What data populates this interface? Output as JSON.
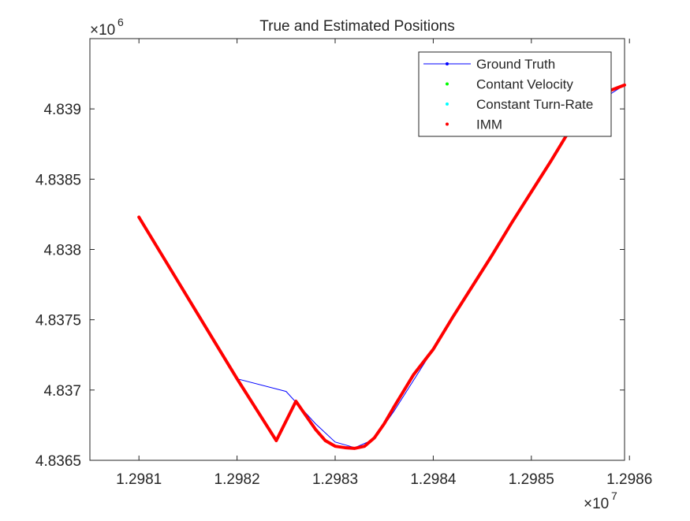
{
  "chart_data": {
    "type": "line",
    "title": "True and Estimated Positions",
    "xlabel": "",
    "ylabel": "",
    "x_exponent_base": "×10",
    "x_exponent_power": "7",
    "y_exponent_base": "×10",
    "y_exponent_power": "6",
    "xlim": [
      12980500,
      12985950
    ],
    "ylim": [
      4836500,
      4839500
    ],
    "xticks": [
      12981000,
      12982000,
      12983000,
      12984000,
      12985000,
      12986000
    ],
    "xtick_labels": [
      "1.2981",
      "1.2982",
      "1.2983",
      "1.2984",
      "1.2985",
      "1.2986"
    ],
    "yticks": [
      4836500,
      4837000,
      4837500,
      4838000,
      4838500,
      4839000
    ],
    "ytick_labels": [
      "4.8365",
      "4.837",
      "4.8375",
      "4.838",
      "4.8385",
      "4.839"
    ],
    "grid": false,
    "legend_position": "top-right",
    "series": [
      {
        "name": "Ground Truth",
        "color": "#0000ff",
        "marker": "dot-line",
        "x": [
          12981000,
          12981500,
          12982000,
          12982500,
          12982800,
          12983000,
          12983200,
          12983400,
          12983600,
          12984000,
          12984500,
          12985000,
          12985500,
          12985950
        ],
        "y": [
          4838230,
          4837660,
          4837080,
          4836990,
          4836760,
          4836630,
          4836590,
          4836650,
          4836850,
          4837290,
          4837850,
          4838410,
          4838970,
          4839170
        ]
      },
      {
        "name": "Contant Velocity",
        "color": "#00ff00",
        "marker": "dot",
        "x": [],
        "y": []
      },
      {
        "name": "Constant Turn-Rate",
        "color": "#00ffff",
        "marker": "dot",
        "x": [],
        "y": []
      },
      {
        "name": "IMM",
        "color": "#ff0000",
        "marker": "dot",
        "x": [
          12981000,
          12981200,
          12981400,
          12981600,
          12981800,
          12982000,
          12982200,
          12982400,
          12982600,
          12982800,
          12982900,
          12983000,
          12983100,
          12983200,
          12983300,
          12983400,
          12983500,
          12983600,
          12983800,
          12984000,
          12984200,
          12984400,
          12984600,
          12984800,
          12985000,
          12985200,
          12985400,
          12985600,
          12985800,
          12985950
        ],
        "y": [
          4838230,
          4838000,
          4837770,
          4837540,
          4837310,
          4837080,
          4836860,
          4836640,
          4836920,
          4836720,
          4836640,
          4836600,
          4836590,
          4836585,
          4836600,
          4836660,
          4836760,
          4836880,
          4837110,
          4837290,
          4837520,
          4837740,
          4837960,
          4838190,
          4838410,
          4838630,
          4838860,
          4839080,
          4839130,
          4839170
        ]
      }
    ]
  }
}
